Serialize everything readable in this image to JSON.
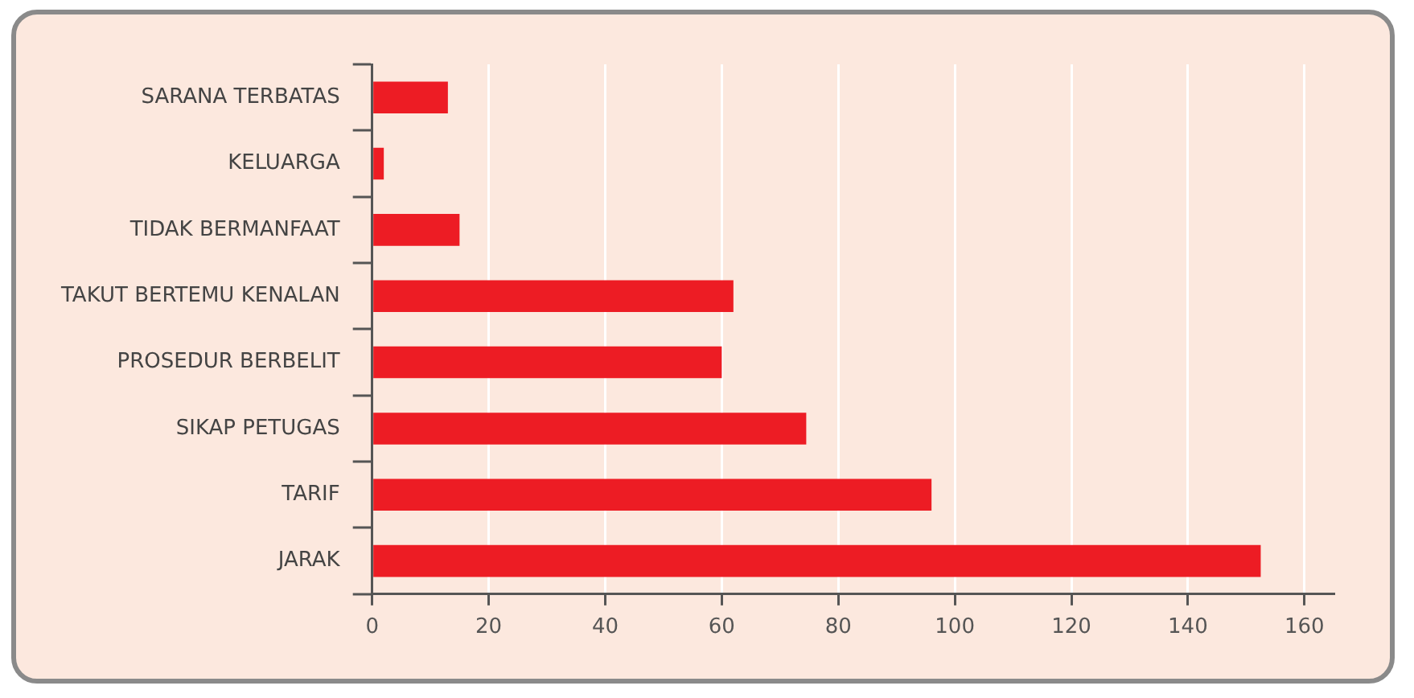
{
  "chart_data": {
    "type": "bar",
    "orientation": "horizontal",
    "categories": [
      "SARANA TERBATAS",
      "KELUARGA",
      "TIDAK BERMANFAAT",
      "TAKUT BERTEMU KENALAN",
      "PROSEDUR BERBELIT",
      "SIKAP PETUGAS",
      "TARIF",
      "JARAK"
    ],
    "values": [
      13,
      2,
      15,
      62,
      60,
      74.5,
      96,
      152.5
    ],
    "color": "#ed1c24",
    "xlim": [
      0,
      165
    ],
    "xticks": [
      0,
      20,
      40,
      60,
      80,
      100,
      120,
      140,
      160
    ],
    "grid": "x",
    "legend": false
  }
}
